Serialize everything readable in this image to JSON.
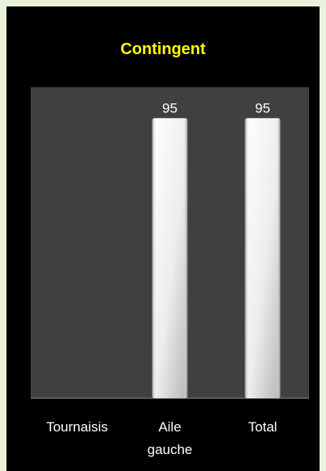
{
  "chart_data": {
    "type": "bar",
    "title": "Contingent",
    "categories": [
      "Tournaisis",
      "Aile gauche",
      "Total"
    ],
    "values": [
      null,
      95,
      95
    ],
    "ylim": [
      0,
      100
    ],
    "grid": false,
    "legend": "none",
    "colors": {
      "background": "#000000",
      "plot_area": "#404040",
      "title": "#ffff00",
      "text": "#ffffff",
      "bar_light": "#ffffff",
      "bar_dark": "#a6a6a6"
    }
  }
}
